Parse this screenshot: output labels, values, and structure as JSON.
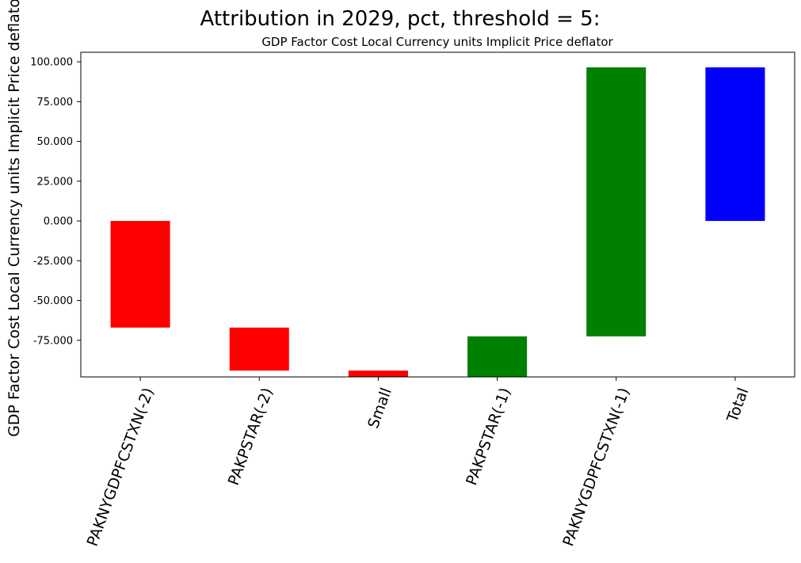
{
  "chart_data": {
    "type": "bar",
    "suptitle": "Attribution in 2029, pct, threshold = 5:",
    "title": "GDP Factor Cost Local Currency units Implicit Price deflator",
    "ylabel": "GDP Factor Cost Local Currency units Implicit Price deflator",
    "xlabel": "",
    "ylim": [
      -98,
      106
    ],
    "yticks": [
      100,
      75,
      50,
      25,
      0,
      -25,
      -50,
      -75
    ],
    "ytick_labels": [
      "100.000",
      "75.000",
      "50.000",
      "25.000",
      "0.000",
      "-25.000",
      "-50.000",
      "-75.000"
    ],
    "categories": [
      "PAKNYGDPFCSTXN(-2)",
      "PAKPSTAR(-2)",
      "Small",
      "PAKPSTAR(-1)",
      "PAKNYGDPFCSTXN(-1)",
      "Total"
    ],
    "bars": [
      {
        "label": "PAKNYGDPFCSTXN(-2)",
        "bottom": -67,
        "top": 0,
        "color": "#ff0000"
      },
      {
        "label": "PAKPSTAR(-2)",
        "bottom": -94,
        "top": -67,
        "color": "#ff0000"
      },
      {
        "label": "Small",
        "bottom": -98,
        "top": -94,
        "color": "#ff0000"
      },
      {
        "label": "PAKPSTAR(-1)",
        "bottom": -98,
        "top": -72.5,
        "color": "#008000"
      },
      {
        "label": "PAKNYGDPFCSTXN(-1)",
        "bottom": -72.5,
        "top": 96.5,
        "color": "#008000"
      },
      {
        "label": "Total",
        "bottom": 0,
        "top": 96.5,
        "color": "#0000ff"
      }
    ],
    "grid": false,
    "legend": "none"
  }
}
